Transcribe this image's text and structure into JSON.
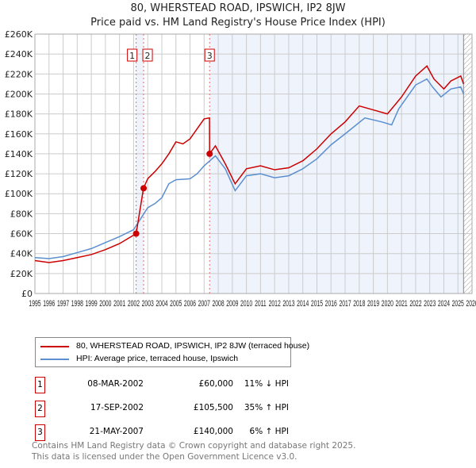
{
  "title": "80, WHERSTEAD ROAD, IPSWICH, IP2 8JW",
  "subtitle": "Price paid vs. HM Land Registry's House Price Index (HPI)",
  "colors": {
    "property": "#cc0000",
    "hpi": "#5b8fd0",
    "shade": "#eef3fc"
  },
  "chart_data": {
    "type": "line",
    "ylim": [
      0,
      260000
    ],
    "xlim": [
      1995,
      2026
    ],
    "y_ticks": [
      "£0",
      "£20K",
      "£40K",
      "£60K",
      "£80K",
      "£100K",
      "£120K",
      "£140K",
      "£160K",
      "£180K",
      "£200K",
      "£220K",
      "£240K",
      "£260K"
    ],
    "x_ticks": [
      "1995",
      "1996",
      "1997",
      "1998",
      "1999",
      "2000",
      "2001",
      "2002",
      "2003",
      "2004",
      "2005",
      "2006",
      "2007",
      "2008",
      "2009",
      "2010",
      "2011",
      "2012",
      "2013",
      "2014",
      "2015",
      "2016",
      "2017",
      "2018",
      "2019",
      "2020",
      "2021",
      "2022",
      "2023",
      "2024",
      "2025",
      "2026"
    ],
    "series": [
      {
        "name": "80, WHERSTEAD ROAD, IPSWICH, IP2 8JW (terraced house)",
        "x": [
          1995,
          1996,
          1997,
          1998,
          1999,
          2000,
          2001,
          2002.18,
          2002.7,
          2003,
          2003.5,
          2004,
          2004.5,
          2005,
          2005.5,
          2006,
          2006.5,
          2007,
          2007.38,
          2007.39,
          2007.8,
          2008.5,
          2009.2,
          2010,
          2011,
          2012,
          2013,
          2014,
          2015,
          2016,
          2017,
          2018,
          2019,
          2020,
          2021,
          2022,
          2022.8,
          2023.3,
          2024,
          2024.5,
          2025.2,
          2025.4
        ],
        "values": [
          33000,
          31000,
          33000,
          36000,
          39000,
          44000,
          50000,
          60000,
          105500,
          115000,
          122000,
          130000,
          140000,
          152000,
          150000,
          155000,
          165000,
          175000,
          176000,
          140000,
          148000,
          130000,
          110000,
          125000,
          128000,
          124000,
          126000,
          133000,
          145000,
          160000,
          172000,
          188000,
          184000,
          180000,
          197000,
          218000,
          228000,
          215000,
          205000,
          213000,
          218000,
          210000
        ]
      },
      {
        "name": "HPI: Average price, terraced house, Ipswich",
        "x": [
          1995,
          1996,
          1997,
          1998,
          1999,
          2000,
          2001,
          2002,
          2002.5,
          2003,
          2003.5,
          2004,
          2004.5,
          2005,
          2006,
          2006.5,
          2007,
          2007.8,
          2008.5,
          2009.2,
          2010,
          2011,
          2012,
          2013,
          2014,
          2015,
          2016,
          2017,
          2018.4,
          2019.6,
          2020.3,
          2020.8,
          2022,
          2022.8,
          2023.2,
          2023.8,
          2024.5,
          2025.2,
          2025.4
        ],
        "values": [
          36000,
          35000,
          37000,
          41000,
          45000,
          51000,
          57000,
          64000,
          75000,
          86000,
          90000,
          96000,
          110000,
          114000,
          115000,
          120000,
          128000,
          138000,
          125000,
          103000,
          118000,
          120000,
          116000,
          118000,
          125000,
          135000,
          149000,
          160000,
          176000,
          172000,
          169000,
          185000,
          209000,
          215000,
          207000,
          197000,
          205000,
          207000,
          200000
        ]
      }
    ],
    "sales": [
      {
        "label": "1",
        "x": 2002.18,
        "value": 60000
      },
      {
        "label": "2",
        "x": 2002.71,
        "value": 105500
      },
      {
        "label": "3",
        "x": 2007.39,
        "value": 140000
      }
    ],
    "forecast_start": 2025.4
  },
  "legend": [
    "80, WHERSTEAD ROAD, IPSWICH, IP2 8JW (terraced house)",
    "HPI: Average price, terraced house, Ipswich"
  ],
  "transactions": [
    {
      "num": "1",
      "date": "08-MAR-2002",
      "price": "£60,000",
      "hpi": "11% ↓ HPI"
    },
    {
      "num": "2",
      "date": "17-SEP-2002",
      "price": "£105,500",
      "hpi": "35% ↑ HPI"
    },
    {
      "num": "3",
      "date": "21-MAY-2007",
      "price": "£140,000",
      "hpi": "6% ↑ HPI"
    }
  ],
  "footer": [
    "Contains HM Land Registry data © Crown copyright and database right 2025.",
    "This data is licensed under the Open Government Licence v3.0."
  ]
}
